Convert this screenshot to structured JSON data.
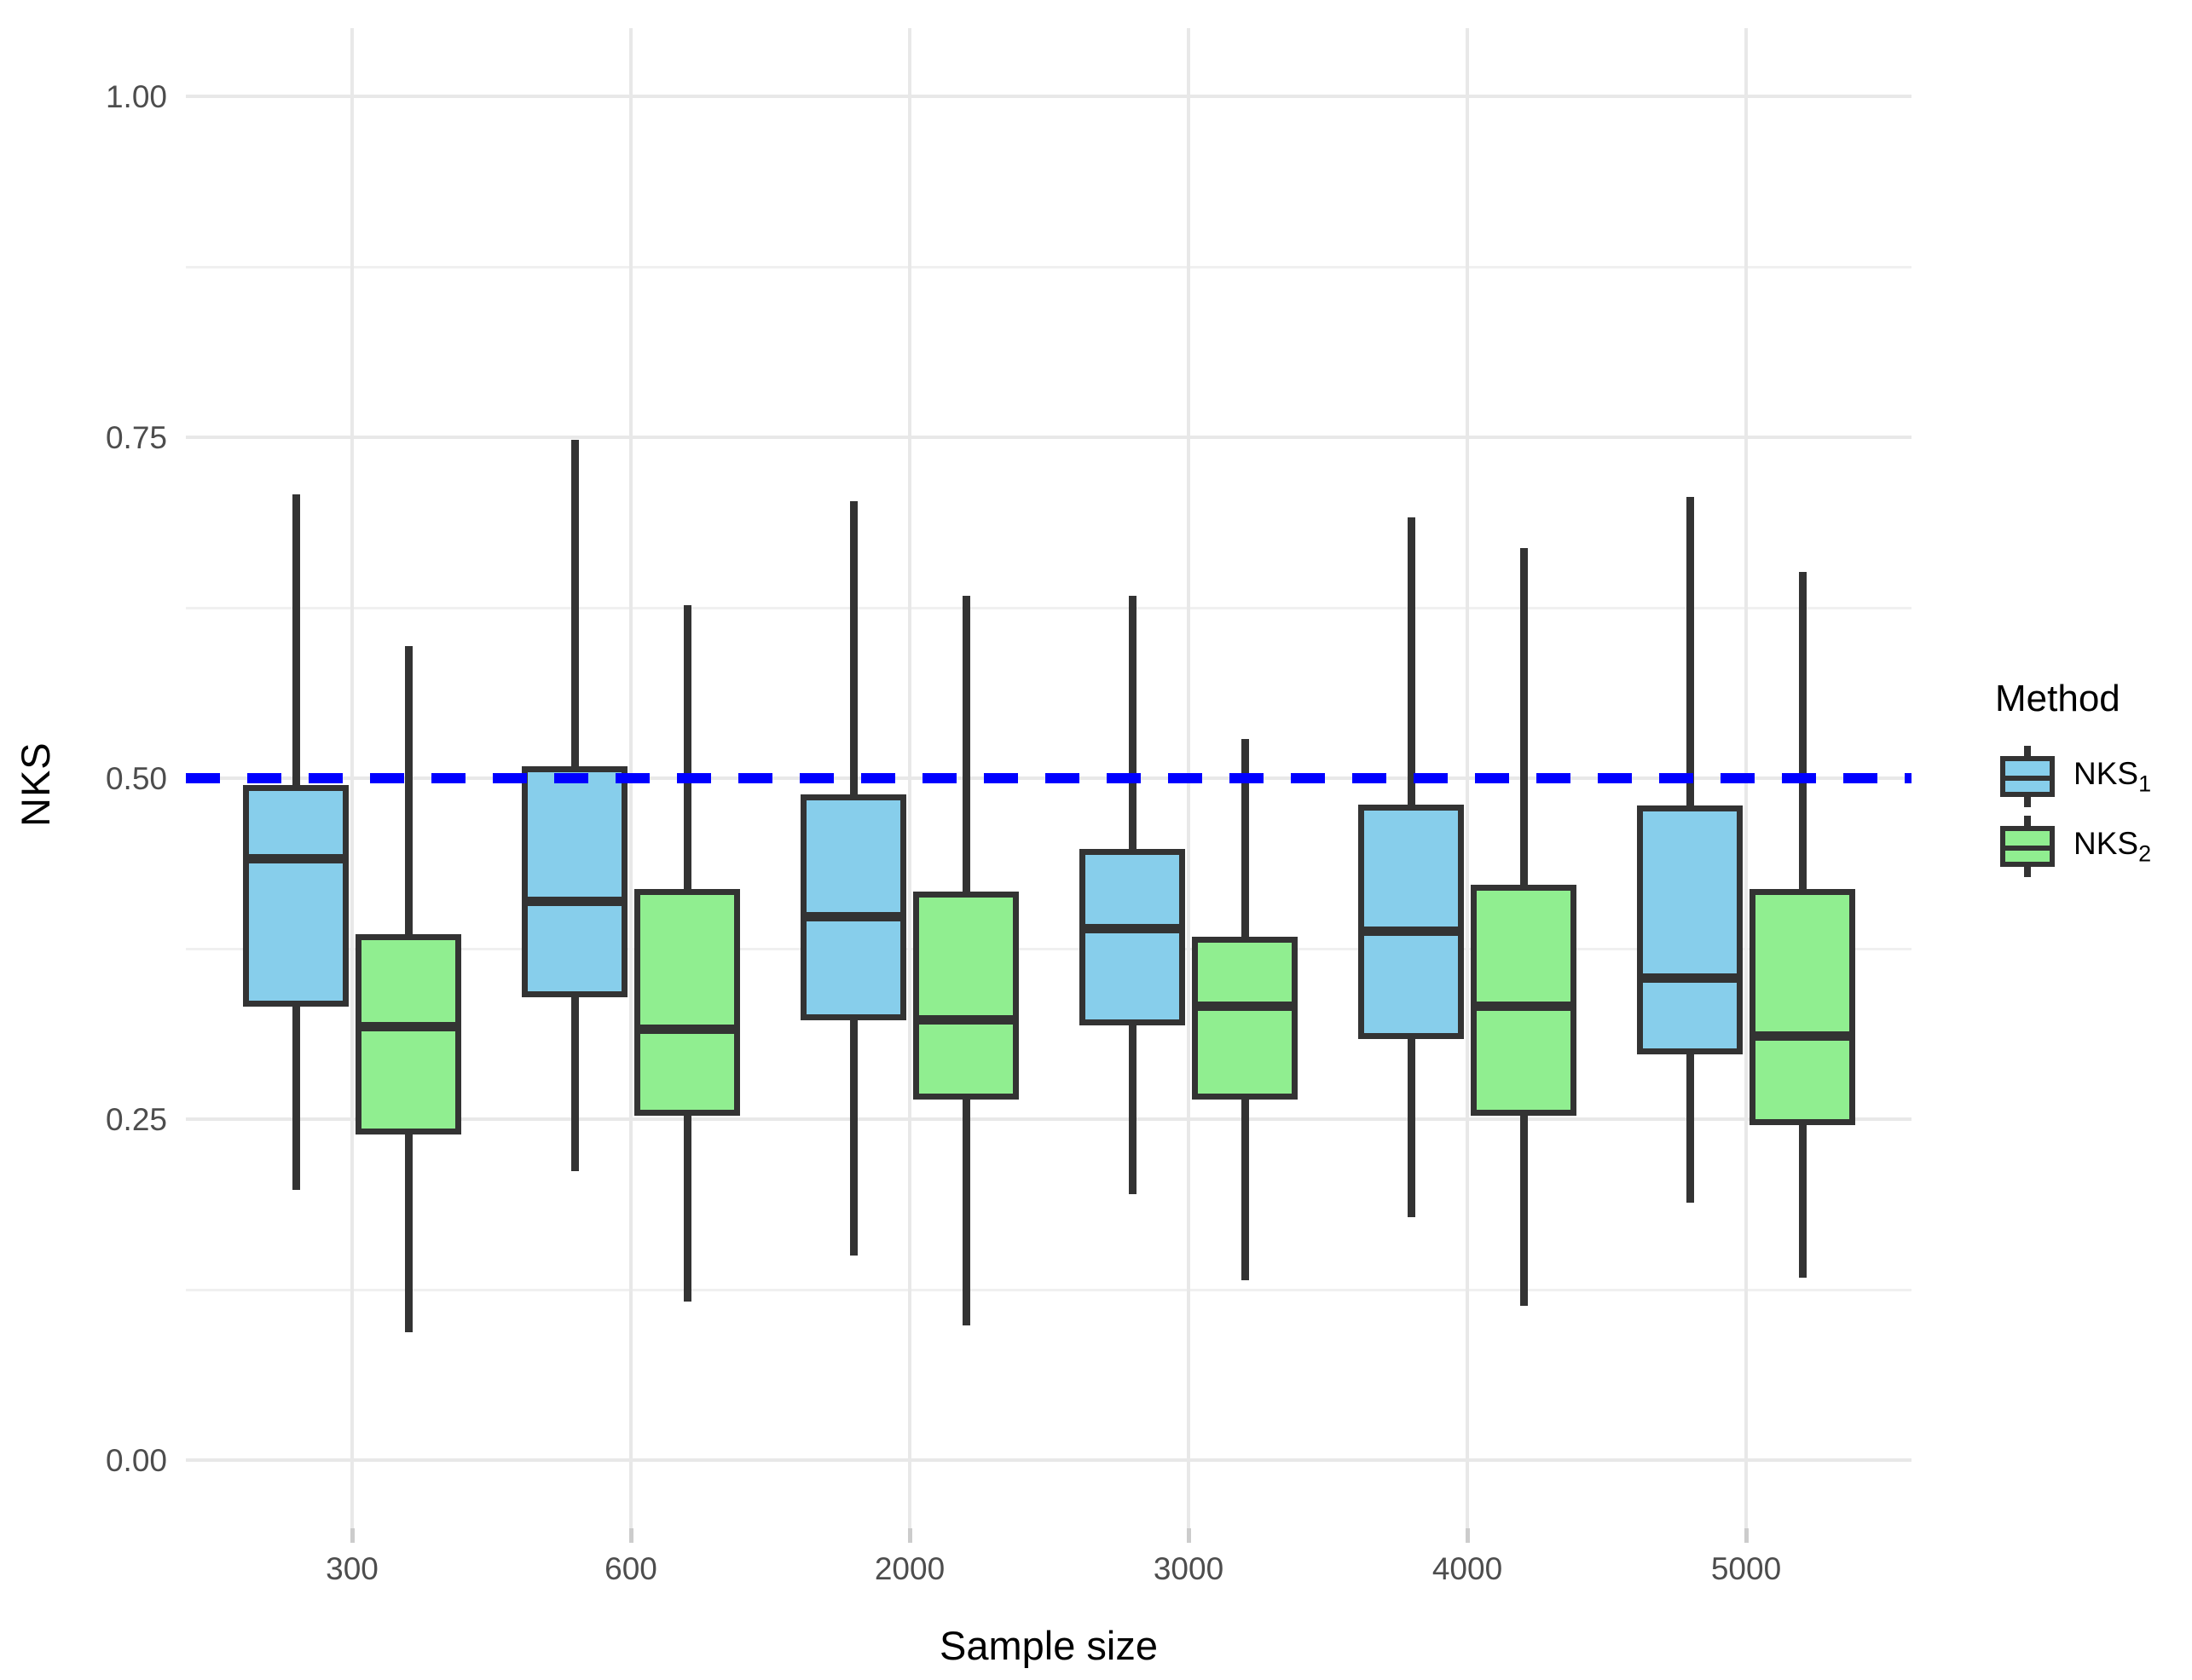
{
  "figure": {
    "y_axis": {
      "title": "NKS",
      "ticks": [
        "1.00",
        "0.75",
        "0.50",
        "0.25",
        "0.00"
      ],
      "tick_values": [
        1.0,
        0.75,
        0.5,
        0.25,
        0.0
      ],
      "minor_values": [
        0.875,
        0.625,
        0.375,
        0.125
      ],
      "range": [
        -0.05,
        1.05
      ]
    },
    "x_axis": {
      "title": "Sample size"
    },
    "legend": {
      "title": "Method",
      "items": [
        {
          "label_base": "NKS",
          "label_sub": "1",
          "color": "#87CEEB"
        },
        {
          "label_base": "NKS",
          "label_sub": "2",
          "color": "#90EE90"
        }
      ]
    },
    "colors": {
      "nks1_fill": "#87CEEB",
      "nks2_fill": "#90EE90",
      "box_outline": "#333333",
      "reference_line": "#0000FF",
      "grid_major": "#E8E8E8",
      "grid_minor": "#F0F0F0",
      "axis_text": "#4D4D4D"
    }
  },
  "chart_data": {
    "type": "boxplot",
    "title": "",
    "xlabel": "Sample size",
    "ylabel": "NKS",
    "ylim": [
      -0.05,
      1.05
    ],
    "grid": true,
    "legend_position": "right",
    "categories": [
      "300",
      "600",
      "2000",
      "3000",
      "4000",
      "5000"
    ],
    "reference_line": {
      "value": 0.5,
      "color": "#0000FF",
      "style": "dashed"
    },
    "series": [
      {
        "name": "NKS1",
        "color": "#87CEEB",
        "boxes": [
          {
            "whisker_low": 0.198,
            "q1": 0.335,
            "median": 0.441,
            "q3": 0.493,
            "whisker_high": 0.708
          },
          {
            "whisker_low": 0.212,
            "q1": 0.342,
            "median": 0.41,
            "q3": 0.507,
            "whisker_high": 0.748
          },
          {
            "whisker_low": 0.15,
            "q1": 0.325,
            "median": 0.399,
            "q3": 0.486,
            "whisker_high": 0.703
          },
          {
            "whisker_low": 0.195,
            "q1": 0.321,
            "median": 0.39,
            "q3": 0.446,
            "whisker_high": 0.634
          },
          {
            "whisker_low": 0.178,
            "q1": 0.311,
            "median": 0.388,
            "q3": 0.479,
            "whisker_high": 0.691
          },
          {
            "whisker_low": 0.189,
            "q1": 0.3,
            "median": 0.354,
            "q3": 0.478,
            "whisker_high": 0.706
          }
        ]
      },
      {
        "name": "NKS2",
        "color": "#90EE90",
        "boxes": [
          {
            "whisker_low": 0.094,
            "q1": 0.241,
            "median": 0.318,
            "q3": 0.384,
            "whisker_high": 0.597
          },
          {
            "whisker_low": 0.116,
            "q1": 0.255,
            "median": 0.316,
            "q3": 0.417,
            "whisker_high": 0.627
          },
          {
            "whisker_low": 0.099,
            "q1": 0.267,
            "median": 0.323,
            "q3": 0.415,
            "whisker_high": 0.634
          },
          {
            "whisker_low": 0.132,
            "q1": 0.267,
            "median": 0.333,
            "q3": 0.382,
            "whisker_high": 0.529
          },
          {
            "whisker_low": 0.113,
            "q1": 0.255,
            "median": 0.333,
            "q3": 0.42,
            "whisker_high": 0.669
          },
          {
            "whisker_low": 0.134,
            "q1": 0.248,
            "median": 0.311,
            "q3": 0.417,
            "whisker_high": 0.651
          }
        ]
      }
    ]
  }
}
